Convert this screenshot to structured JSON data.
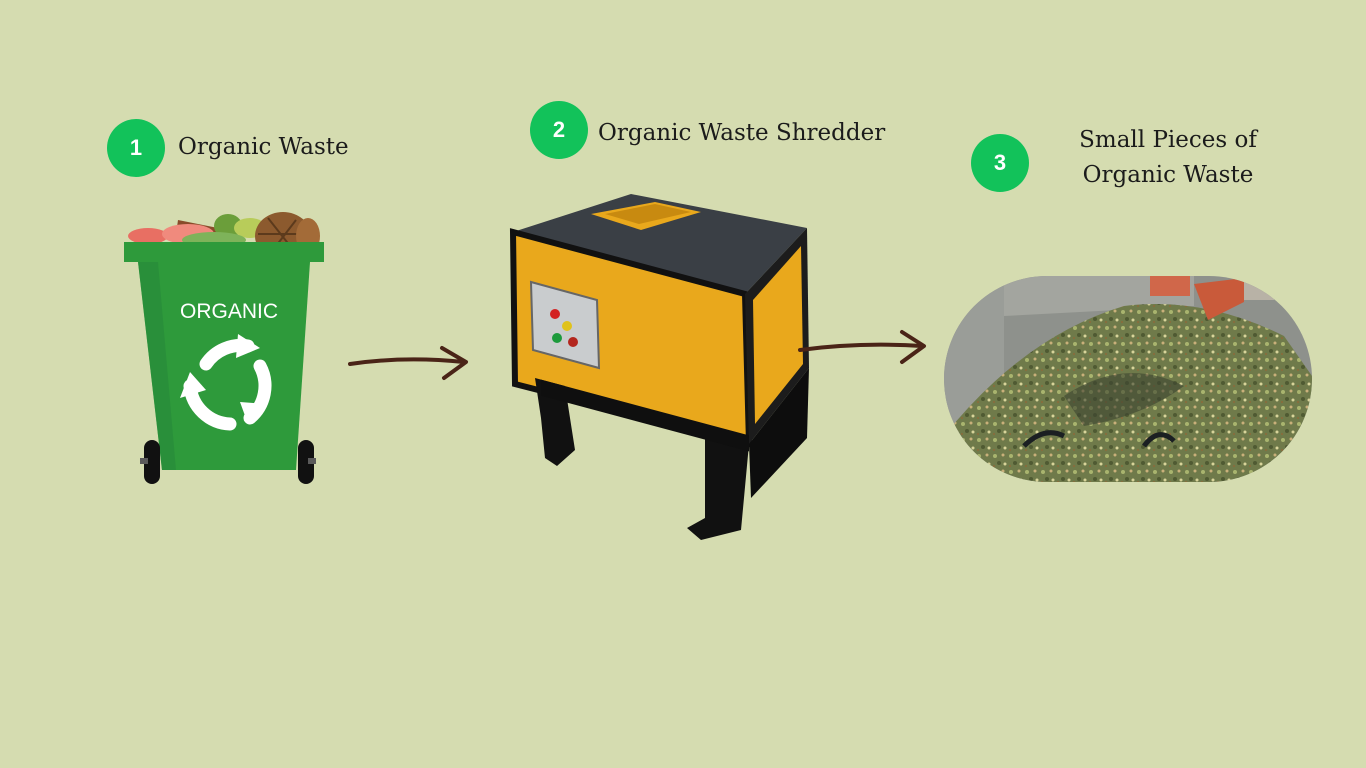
{
  "steps": [
    {
      "number": "1",
      "label": "Organic Waste",
      "icon": "organic-waste-bin-icon"
    },
    {
      "number": "2",
      "label": "Organic Waste Shredder",
      "icon": "shredder-machine-icon"
    },
    {
      "number": "3",
      "label": "Small Pieces of Organic Waste",
      "icon": "shredded-waste-photo"
    }
  ],
  "bin_text": "ORGANIC",
  "colors": {
    "background": "#d5dcb0",
    "badge": "#12c25a",
    "bin_green": "#2e9a3b",
    "shredder_yellow": "#e9a81c",
    "arrow": "#4a2417"
  }
}
